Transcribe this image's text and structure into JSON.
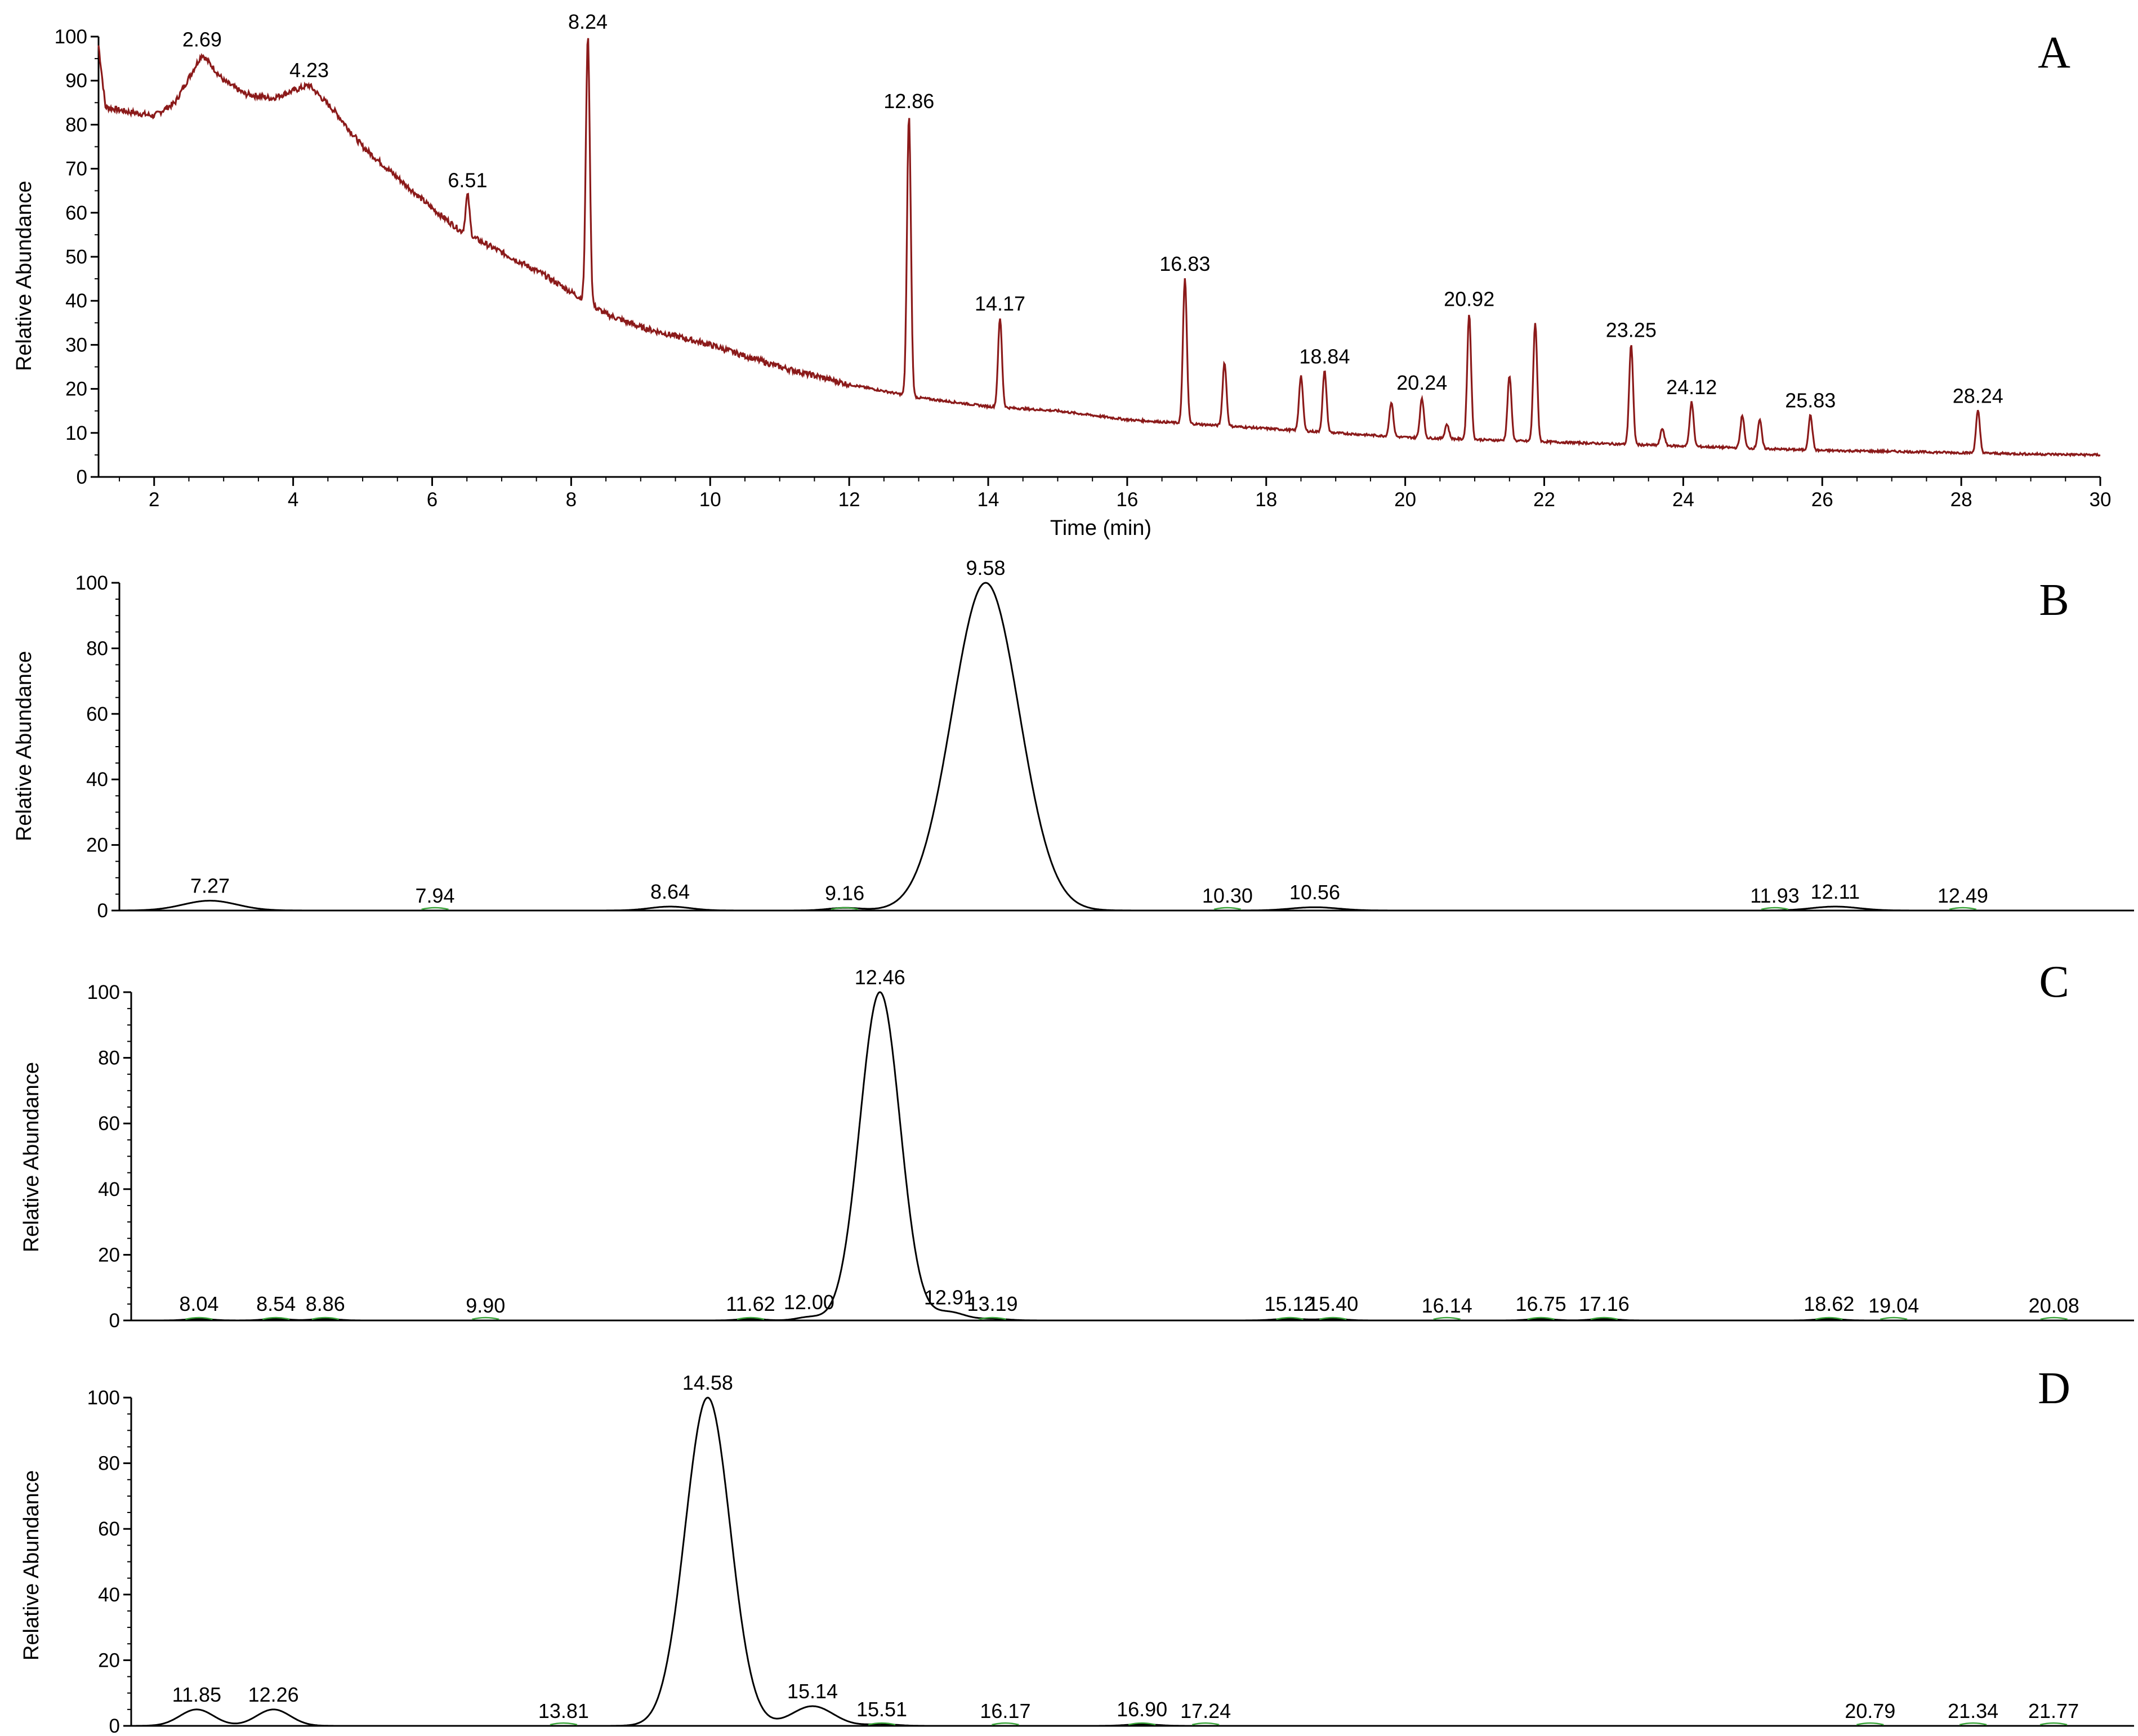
{
  "chart_data": [
    {
      "type": "line",
      "panel": "A",
      "color": "#8b1a1a",
      "xlabel": "Time (min)",
      "ylabel": "Relative Abundance",
      "xlim": [
        1.2,
        30
      ],
      "ylim": [
        0,
        100
      ],
      "xticks": [
        2,
        4,
        6,
        8,
        10,
        12,
        14,
        16,
        18,
        20,
        22,
        24,
        26,
        28,
        30
      ],
      "yticks": [
        0,
        10,
        20,
        30,
        40,
        50,
        60,
        70,
        80,
        90,
        100
      ],
      "baseline": [
        [
          1.2,
          98
        ],
        [
          1.3,
          84
        ],
        [
          1.6,
          83
        ],
        [
          2.0,
          82
        ],
        [
          2.3,
          85
        ],
        [
          2.69,
          96
        ],
        [
          3.0,
          90
        ],
        [
          3.3,
          87
        ],
        [
          3.7,
          86
        ],
        [
          4.23,
          89
        ],
        [
          4.6,
          83
        ],
        [
          5.0,
          75
        ],
        [
          5.5,
          68
        ],
        [
          6.0,
          61
        ],
        [
          6.4,
          56
        ],
        [
          7.0,
          51
        ],
        [
          7.6,
          46
        ],
        [
          8.0,
          42
        ],
        [
          8.5,
          37
        ],
        [
          9.0,
          34
        ],
        [
          10.0,
          30
        ],
        [
          11.0,
          25
        ],
        [
          12.0,
          21
        ],
        [
          13.0,
          18
        ],
        [
          14.0,
          16
        ],
        [
          15.0,
          15
        ],
        [
          16.0,
          13
        ],
        [
          17.0,
          12
        ],
        [
          18.0,
          11
        ],
        [
          19.0,
          10
        ],
        [
          20.0,
          9
        ],
        [
          21.0,
          8.5
        ],
        [
          22.0,
          8
        ],
        [
          23.0,
          7.5
        ],
        [
          24.0,
          7
        ],
        [
          25.0,
          6.5
        ],
        [
          26.0,
          6
        ],
        [
          27.0,
          5.8
        ],
        [
          28.0,
          5.5
        ],
        [
          29.0,
          5.2
        ],
        [
          30.0,
          5
        ]
      ],
      "peaks": [
        {
          "x": 6.51,
          "y": 64,
          "label": "6.51"
        },
        {
          "x": 8.24,
          "y": 100,
          "label": "8.24"
        },
        {
          "x": 12.86,
          "y": 82,
          "label": "12.86"
        },
        {
          "x": 14.17,
          "y": 36,
          "label": "14.17"
        },
        {
          "x": 16.83,
          "y": 45,
          "label": "16.83"
        },
        {
          "x": 17.4,
          "y": 26,
          "label": ""
        },
        {
          "x": 18.5,
          "y": 23,
          "label": ""
        },
        {
          "x": 18.84,
          "y": 24,
          "label": "18.84"
        },
        {
          "x": 19.8,
          "y": 17,
          "label": ""
        },
        {
          "x": 20.24,
          "y": 18,
          "label": "20.24"
        },
        {
          "x": 20.6,
          "y": 12,
          "label": ""
        },
        {
          "x": 20.92,
          "y": 37,
          "label": "20.92"
        },
        {
          "x": 21.5,
          "y": 23,
          "label": ""
        },
        {
          "x": 21.87,
          "y": 35,
          "label": ""
        },
        {
          "x": 23.25,
          "y": 30,
          "label": "23.25"
        },
        {
          "x": 23.7,
          "y": 11,
          "label": ""
        },
        {
          "x": 24.12,
          "y": 17,
          "label": "24.12"
        },
        {
          "x": 24.85,
          "y": 14,
          "label": ""
        },
        {
          "x": 25.1,
          "y": 13,
          "label": ""
        },
        {
          "x": 25.83,
          "y": 14,
          "label": "25.83"
        },
        {
          "x": 28.24,
          "y": 15,
          "label": "28.24"
        }
      ],
      "hump_labels": [
        {
          "x": 2.69,
          "y": 96,
          "label": "2.69"
        },
        {
          "x": 4.23,
          "y": 89,
          "label": "4.23"
        }
      ]
    },
    {
      "type": "line",
      "panel": "B",
      "color": "#000000",
      "ylabel": "Relative Abundance",
      "xlim": [
        7.0,
        13.0
      ],
      "ylim": [
        0,
        100
      ],
      "yticks": [
        0,
        20,
        40,
        60,
        80,
        100
      ],
      "peaks": [
        {
          "x": 7.27,
          "y": 3,
          "label": "7.27",
          "width": 0.08
        },
        {
          "x": 7.94,
          "y": 0,
          "label": "7.94",
          "width": 0.05
        },
        {
          "x": 8.64,
          "y": 1.2,
          "label": "8.64",
          "width": 0.06
        },
        {
          "x": 9.16,
          "y": 0.8,
          "label": "9.16",
          "width": 0.05
        },
        {
          "x": 9.58,
          "y": 100,
          "label": "9.58",
          "width": 0.1
        },
        {
          "x": 10.3,
          "y": 0,
          "label": "10.30",
          "width": 0.05
        },
        {
          "x": 10.56,
          "y": 1,
          "label": "10.56",
          "width": 0.07
        },
        {
          "x": 11.93,
          "y": 0,
          "label": "11.93",
          "width": 0.05
        },
        {
          "x": 12.11,
          "y": 1.2,
          "label": "12.11",
          "width": 0.07
        },
        {
          "x": 12.49,
          "y": 0,
          "label": "12.49",
          "width": 0.05
        }
      ]
    },
    {
      "type": "line",
      "panel": "C",
      "color": "#000000",
      "ylabel": "Relative Abundance",
      "xlim": [
        7.6,
        20.6
      ],
      "ylim": [
        0,
        100
      ],
      "yticks": [
        0,
        20,
        40,
        60,
        80,
        100
      ],
      "peaks": [
        {
          "x": 8.04,
          "y": 0.5,
          "label": "8.04",
          "width": 0.08
        },
        {
          "x": 8.54,
          "y": 0.5,
          "label": "8.54",
          "width": 0.08
        },
        {
          "x": 8.86,
          "y": 0.5,
          "label": "8.86",
          "width": 0.08
        },
        {
          "x": 9.9,
          "y": 0,
          "label": "9.90",
          "width": 0.08
        },
        {
          "x": 11.62,
          "y": 0.5,
          "label": "11.62",
          "width": 0.08
        },
        {
          "x": 12.0,
          "y": 1,
          "label": "12.00",
          "width": 0.08
        },
        {
          "x": 12.46,
          "y": 100,
          "label": "12.46",
          "width": 0.13
        },
        {
          "x": 12.91,
          "y": 2.5,
          "label": "12.91",
          "width": 0.1
        },
        {
          "x": 13.19,
          "y": 0.5,
          "label": "13.19",
          "width": 0.1
        },
        {
          "x": 15.12,
          "y": 0.5,
          "label": "15.12",
          "width": 0.1
        },
        {
          "x": 15.4,
          "y": 0.5,
          "label": "15.40",
          "width": 0.08
        },
        {
          "x": 16.14,
          "y": 0,
          "label": "16.14",
          "width": 0.08
        },
        {
          "x": 16.75,
          "y": 0.5,
          "label": "16.75",
          "width": 0.08
        },
        {
          "x": 17.16,
          "y": 0.5,
          "label": "17.16",
          "width": 0.08
        },
        {
          "x": 18.62,
          "y": 0.5,
          "label": "18.62",
          "width": 0.08
        },
        {
          "x": 19.04,
          "y": 0,
          "label": "19.04",
          "width": 0.08
        },
        {
          "x": 20.08,
          "y": 0,
          "label": "20.08",
          "width": 0.08
        }
      ]
    },
    {
      "type": "line",
      "panel": "D",
      "color": "#000000",
      "ylabel": "Relative Abundance",
      "xlim": [
        11.5,
        22.2
      ],
      "ylim": [
        0,
        100
      ],
      "yticks": [
        0,
        20,
        40,
        60,
        80,
        100
      ],
      "peaks": [
        {
          "x": 11.85,
          "y": 5,
          "label": "11.85",
          "width": 0.09
        },
        {
          "x": 12.26,
          "y": 5,
          "label": "12.26",
          "width": 0.09
        },
        {
          "x": 13.81,
          "y": 0,
          "label": "13.81",
          "width": 0.08
        },
        {
          "x": 14.58,
          "y": 100,
          "label": "14.58",
          "width": 0.12
        },
        {
          "x": 15.14,
          "y": 6,
          "label": "15.14",
          "width": 0.11
        },
        {
          "x": 15.51,
          "y": 0.5,
          "label": "15.51",
          "width": 0.08
        },
        {
          "x": 16.17,
          "y": 0,
          "label": "16.17",
          "width": 0.08
        },
        {
          "x": 16.9,
          "y": 0.5,
          "label": "16.90",
          "width": 0.08
        },
        {
          "x": 17.24,
          "y": 0,
          "label": "17.24",
          "width": 0.08
        },
        {
          "x": 20.79,
          "y": 0,
          "label": "20.79",
          "width": 0.08
        },
        {
          "x": 21.34,
          "y": 0,
          "label": "21.34",
          "width": 0.08
        },
        {
          "x": 21.77,
          "y": 0,
          "label": "21.77",
          "width": 0.08
        }
      ]
    }
  ]
}
